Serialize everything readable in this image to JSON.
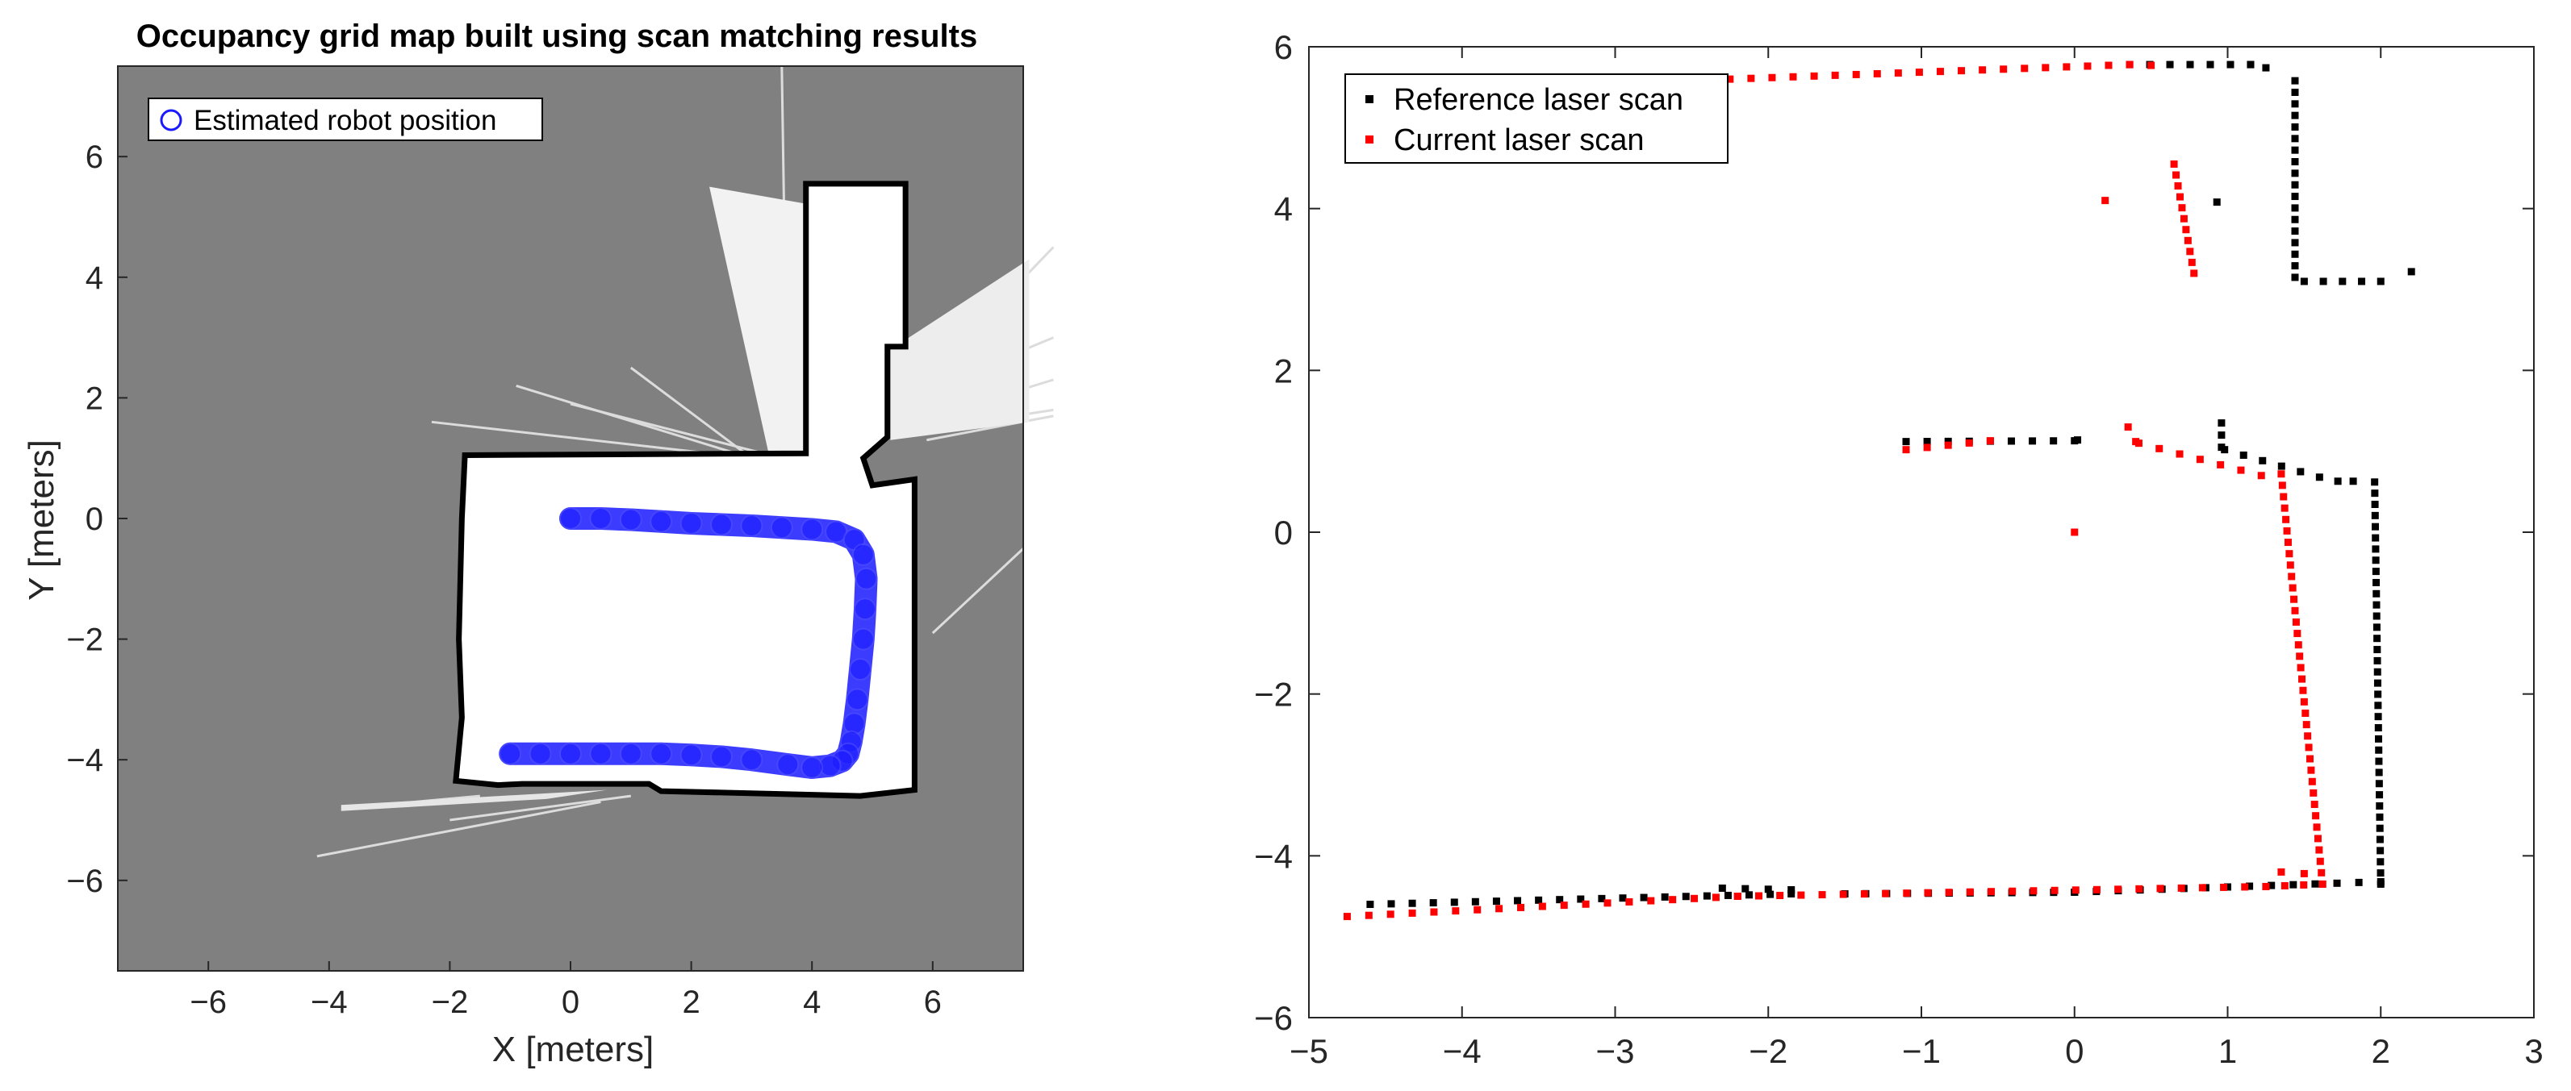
{
  "chart_data": [
    {
      "type": "occupancy_map",
      "title": "Occupancy grid map built using scan matching results",
      "xlabel": "X [meters]",
      "ylabel": "Y [meters]",
      "xlim": [
        -7.5,
        7.5
      ],
      "ylim": [
        -7.5,
        7.5
      ],
      "xticks": [
        -6,
        -4,
        -2,
        0,
        2,
        4,
        6
      ],
      "yticks": [
        -6,
        -4,
        -2,
        0,
        2,
        4,
        6
      ],
      "legend_location": "top-left",
      "background_color": "#808080",
      "free_space_color": "#ffffff",
      "occupied_color": "#000000",
      "series": [
        {
          "name": "Estimated robot position",
          "color": "#1a1aff",
          "marker": "circle",
          "x": [
            0.0,
            0.5,
            1.0,
            1.5,
            2.0,
            2.5,
            3.0,
            3.5,
            4.0,
            4.4,
            4.7,
            4.85,
            4.9,
            4.88,
            4.85,
            4.8,
            4.75,
            4.7,
            4.65,
            4.6,
            4.5,
            4.3,
            4.0,
            3.6,
            3.0,
            2.5,
            2.0,
            1.5,
            1.0,
            0.5,
            0.0,
            -0.5,
            -1.0
          ],
          "y": [
            0.0,
            0.0,
            -0.02,
            -0.05,
            -0.08,
            -0.1,
            -0.12,
            -0.15,
            -0.18,
            -0.22,
            -0.35,
            -0.6,
            -1.0,
            -1.5,
            -2.0,
            -2.5,
            -3.0,
            -3.4,
            -3.7,
            -3.9,
            -4.02,
            -4.1,
            -4.13,
            -4.08,
            -4.0,
            -3.95,
            -3.92,
            -3.9,
            -3.9,
            -3.9,
            -3.9,
            -3.9,
            -3.9
          ]
        }
      ]
    },
    {
      "type": "scatter",
      "title": "",
      "xlabel": "",
      "ylabel": "",
      "xlim": [
        -5,
        3
      ],
      "ylim": [
        -6,
        6
      ],
      "xticks": [
        -5,
        -4,
        -3,
        -2,
        -1,
        0,
        1,
        2,
        3
      ],
      "yticks": [
        -6,
        -4,
        -2,
        0,
        2,
        4,
        6
      ],
      "legend_location": "top-left",
      "grid": false,
      "series": [
        {
          "name": "Reference laser scan",
          "color": "#000000",
          "marker": "square",
          "segments": [
            [
              [
                0.36,
                5.78
              ],
              [
                1.15,
                5.78
              ]
            ],
            [
              [
                1.15,
                5.78
              ],
              [
                1.25,
                5.74
              ]
            ],
            [
              [
                1.44,
                5.58
              ],
              [
                1.44,
                3.15
              ]
            ],
            [
              [
                1.5,
                3.1
              ],
              [
                2.0,
                3.1
              ]
            ],
            [
              [
                -1.1,
                1.12
              ],
              [
                0.0,
                1.13
              ]
            ],
            [
              [
                0.96,
                1.35
              ],
              [
                0.96,
                1.05
              ]
            ],
            [
              [
                0.98,
                1.02
              ],
              [
                1.6,
                0.68
              ]
            ],
            [
              [
                1.96,
                0.62
              ],
              [
                2.0,
                -4.35
              ]
            ],
            [
              [
                2.0,
                -4.32
              ],
              [
                0.0,
                -4.45
              ]
            ],
            [
              [
                0.0,
                -4.45
              ],
              [
                -1.5,
                -4.47
              ]
            ],
            [
              [
                -1.85,
                -4.47
              ],
              [
                -4.6,
                -4.6
              ]
            ],
            [
              [
                -2.3,
                -4.4
              ],
              [
                -1.85,
                -4.42
              ]
            ]
          ],
          "points": [
            [
              2.2,
              3.22
            ],
            [
              0.93,
              4.08
            ],
            [
              0.02,
              1.14
            ],
            [
              1.72,
              0.63
            ],
            [
              1.82,
              0.63
            ]
          ]
        },
        {
          "name": "Current laser scan",
          "color": "#ff0000",
          "marker": "square",
          "segments": [
            [
              [
                -2.25,
                5.6
              ],
              [
                0.36,
                5.78
              ]
            ],
            [
              [
                0.36,
                5.78
              ],
              [
                0.5,
                5.77
              ]
            ],
            [
              [
                0.65,
                4.55
              ],
              [
                0.78,
                3.2
              ]
            ],
            [
              [
                -1.1,
                1.02
              ],
              [
                -0.55,
                1.13
              ]
            ],
            [
              [
                0.35,
                1.3
              ],
              [
                0.4,
                1.12
              ]
            ],
            [
              [
                0.42,
                1.1
              ],
              [
                1.22,
                0.7
              ]
            ],
            [
              [
                1.35,
                0.72
              ],
              [
                1.62,
                -4.35
              ]
            ],
            [
              [
                1.62,
                -4.35
              ],
              [
                1.25,
                -4.38
              ]
            ],
            [
              [
                1.25,
                -4.38
              ],
              [
                -2.2,
                -4.5
              ]
            ],
            [
              [
                -2.2,
                -4.5
              ],
              [
                -4.75,
                -4.75
              ]
            ]
          ],
          "points": [
            [
              0.2,
              4.1
            ],
            [
              0.0,
              0.0
            ],
            [
              1.35,
              -4.2
            ],
            [
              1.5,
              -4.22
            ]
          ]
        }
      ]
    }
  ]
}
